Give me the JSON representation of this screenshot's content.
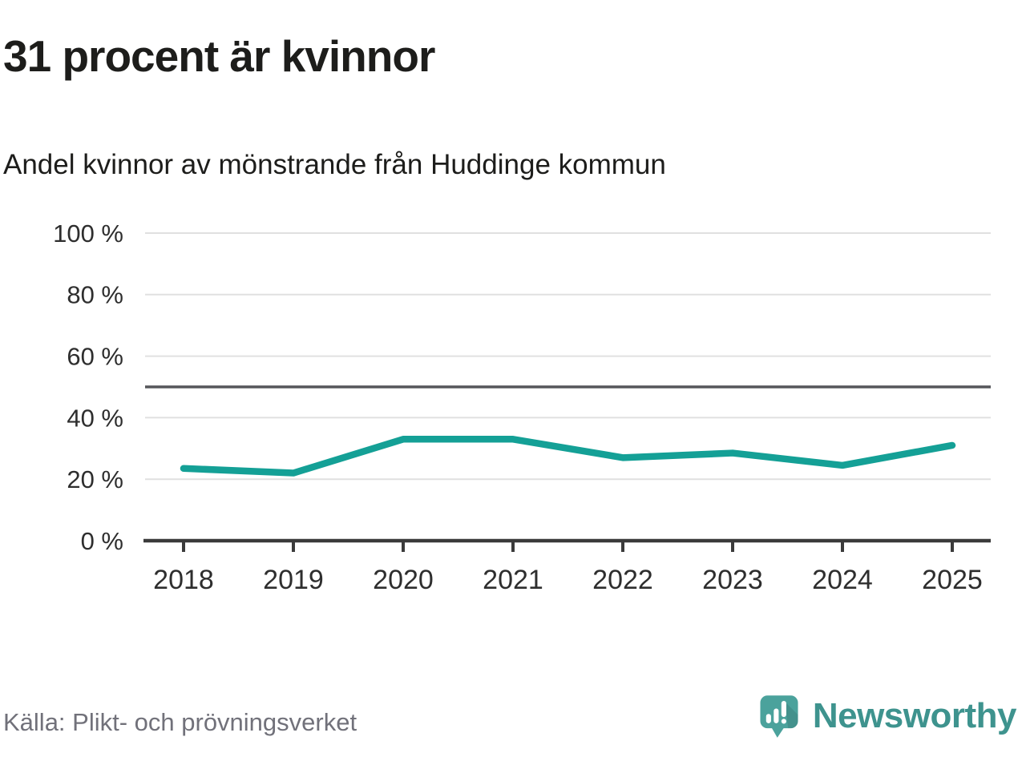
{
  "page": {
    "title": "31 procent är kvinnor",
    "subtitle": "Andel kvinnor av mönstrande från Huddinge kommun",
    "source": "Källa: Plikt- och prövningsverket",
    "brand": "Newsworthy"
  },
  "colors": {
    "line": "#14a096",
    "grid": "#e0e0e0",
    "axis": "#3b3b3b",
    "reference": "#55565a",
    "tick_text": "#2e2e2e",
    "source_text": "#71717a",
    "logo_bubble": "#4ba29c",
    "wordmark": "#3e938e"
  },
  "chart_data": {
    "type": "line",
    "x": [
      2018,
      2019,
      2020,
      2021,
      2022,
      2023,
      2024,
      2025
    ],
    "series": [
      {
        "name": "Andel kvinnor av mönstrande",
        "values": [
          23.5,
          22,
          33,
          33,
          27,
          28.5,
          24.5,
          31
        ]
      }
    ],
    "title": "31 procent är kvinnor",
    "subtitle": "Andel kvinnor av mönstrande från Huddinge kommun",
    "xlabel": "",
    "ylabel": "",
    "ylim": [
      0,
      100
    ],
    "yticks": [
      0,
      20,
      40,
      60,
      80,
      100
    ],
    "ytick_suffix": " %",
    "reference_line": 50,
    "grid": true,
    "legend": "none"
  }
}
